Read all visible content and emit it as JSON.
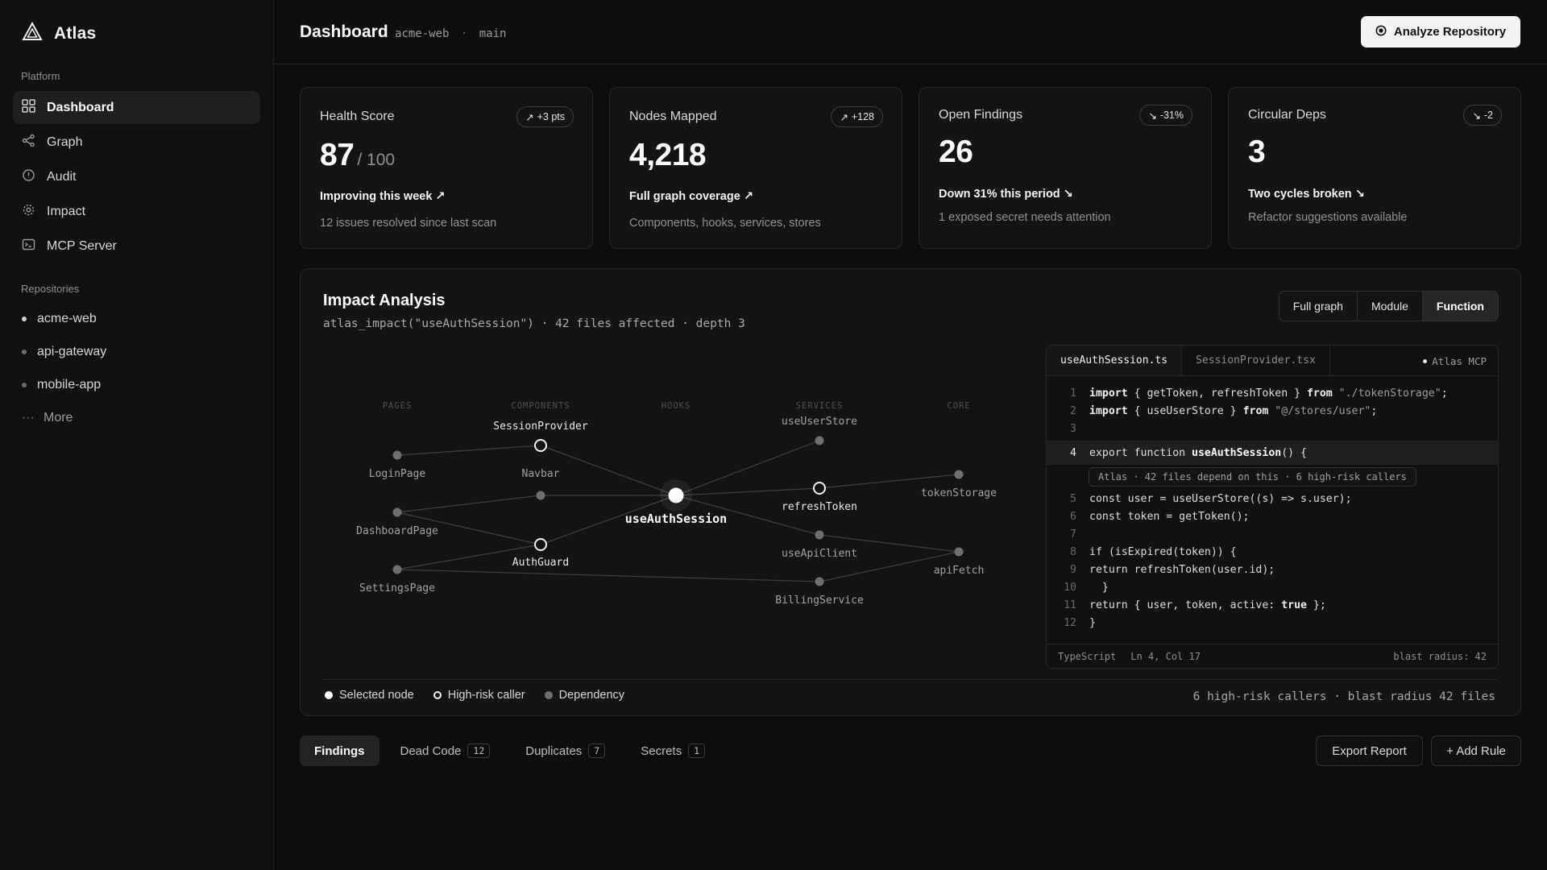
{
  "app": {
    "name": "Atlas",
    "logo_icon": "atlas-logo-icon"
  },
  "sidebar": {
    "platform_label": "Platform",
    "nav": [
      {
        "label": "Dashboard",
        "icon": "grid-icon",
        "active": true
      },
      {
        "label": "Graph",
        "icon": "share-icon"
      },
      {
        "label": "Audit",
        "icon": "alert-circle-icon"
      },
      {
        "label": "Impact",
        "icon": "target-icon"
      },
      {
        "label": "MCP Server",
        "icon": "terminal-icon"
      }
    ],
    "repos_label": "Repositories",
    "repos": [
      {
        "label": "acme-web"
      },
      {
        "label": "api-gateway"
      },
      {
        "label": "mobile-app"
      }
    ],
    "more_label": "More",
    "more_glyph": "···"
  },
  "header": {
    "title": "Dashboard",
    "repo": "acme-web",
    "separator": "·",
    "branch": "main",
    "analyze_label": "Analyze Repository"
  },
  "stats": [
    {
      "title": "Health Score",
      "badge": "+3 pts",
      "badge_dir": "up",
      "value": "87",
      "value_sub": "/ 100",
      "trend": "Improving this week ↗",
      "note": "12 issues resolved since last scan"
    },
    {
      "title": "Nodes Mapped",
      "badge": "+128",
      "badge_dir": "up",
      "value": "4,218",
      "value_sub": "",
      "trend": "Full graph coverage ↗",
      "note": "Components, hooks, services, stores"
    },
    {
      "title": "Open Findings",
      "badge": "-31%",
      "badge_dir": "down",
      "value": "26",
      "value_sub": "",
      "trend": "Down 31% this period ↘",
      "note": "1 exposed secret needs attention"
    },
    {
      "title": "Circular Deps",
      "badge": "-2",
      "badge_dir": "down",
      "value": "3",
      "value_sub": "",
      "trend": "Two cycles broken ↘",
      "note": "Refactor suggestions available"
    }
  ],
  "impact": {
    "title": "Impact Analysis",
    "subtitle": "atlas_impact(\"useAuthSession\") · 42 files affected · depth 3",
    "views": [
      "Full graph",
      "Module",
      "Function"
    ],
    "active_view": "Function",
    "graph": {
      "columns": [
        "PAGES",
        "COMPONENTS",
        "HOOKS",
        "SERVICES",
        "CORE"
      ],
      "nodes": [
        {
          "id": "LoginPage",
          "label": "LoginPage",
          "kind": "dependency"
        },
        {
          "id": "DashboardPage",
          "label": "DashboardPage",
          "kind": "dependency"
        },
        {
          "id": "SettingsPage",
          "label": "SettingsPage",
          "kind": "dependency"
        },
        {
          "id": "SessionProvider",
          "label": "SessionProvider",
          "kind": "high-risk"
        },
        {
          "id": "Navbar",
          "label": "Navbar",
          "kind": "dependency"
        },
        {
          "id": "AuthGuard",
          "label": "AuthGuard",
          "kind": "high-risk"
        },
        {
          "id": "useAuthSession",
          "label": "useAuthSession",
          "kind": "selected"
        },
        {
          "id": "useUserStore",
          "label": "useUserStore",
          "kind": "dependency"
        },
        {
          "id": "refreshToken",
          "label": "refreshToken",
          "kind": "high-risk"
        },
        {
          "id": "useApiClient",
          "label": "useApiClient",
          "kind": "dependency"
        },
        {
          "id": "BillingService",
          "label": "BillingService",
          "kind": "dependency"
        },
        {
          "id": "tokenStorage",
          "label": "tokenStorage",
          "kind": "dependency"
        },
        {
          "id": "apiFetch",
          "label": "apiFetch",
          "kind": "dependency"
        }
      ]
    },
    "code": {
      "tabs": [
        "useAuthSession.ts",
        "SessionProvider.tsx"
      ],
      "active_tab": "useAuthSession.ts",
      "mcp_label": "Atlas MCP",
      "lines": {
        "l1": {
          "n": "1",
          "kw1": "import",
          "a": " { getToken, refreshToken } ",
          "kw2": "from",
          "str": " \"./tokenStorage\"",
          "end": ";"
        },
        "l2": {
          "n": "2",
          "kw1": "import",
          "a": " { useUserStore } ",
          "kw2": "from",
          "str": " \"@/stores/user\"",
          "end": ";"
        },
        "l3": {
          "n": "3"
        },
        "l4": {
          "n": "4",
          "a": "export function ",
          "fn": "useAuthSession",
          "b": "() {"
        },
        "hint": "Atlas · 42 files depend on this · 6 high-risk callers",
        "l5": {
          "n": "5",
          "a": "const user = useUserStore((s) => s.user);"
        },
        "l6": {
          "n": "6",
          "a": "const token = getToken();"
        },
        "l7": {
          "n": "7"
        },
        "l8": {
          "n": "8",
          "a": "if (isExpired(token)) {"
        },
        "l9": {
          "n": "9",
          "a": "return refreshToken(user.id);"
        },
        "l10": {
          "n": "10",
          "a": "  }"
        },
        "l11": {
          "n": "11",
          "a": "return { user, token, active: ",
          "kw": "true",
          "b": " };"
        },
        "l12": {
          "n": "12",
          "a": "}"
        }
      },
      "footer_lang": "TypeScript",
      "footer_pos": "Ln 4, Col 17",
      "footer_blast": "blast radius: 42"
    },
    "legend": {
      "selected": "Selected node",
      "high_risk": "High-risk caller",
      "dependency": "Dependency"
    },
    "summary": "6 high-risk callers · blast radius 42 files"
  },
  "findings_tabs": [
    {
      "label": "Findings",
      "count": "",
      "active": true
    },
    {
      "label": "Dead Code",
      "count": "12"
    },
    {
      "label": "Duplicates",
      "count": "7"
    },
    {
      "label": "Secrets",
      "count": "1"
    }
  ],
  "actions": {
    "export_label": "Export Report",
    "add_rule_label": "+ Add Rule"
  },
  "colors": {
    "background": "#0e0e0e",
    "card": "#141414",
    "accent": "#f5f5f5",
    "muted": "#8e8e8e"
  }
}
